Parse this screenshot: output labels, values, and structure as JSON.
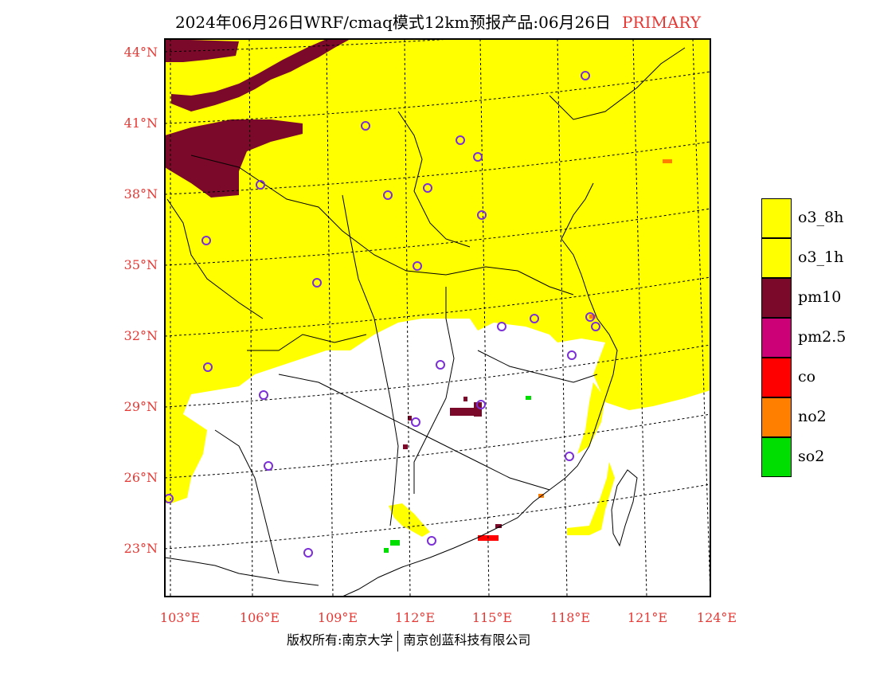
{
  "title": {
    "text": "2024年06月26日WRF/cmaq模式12km预报产品:06月26日",
    "tag": "PRIMARY"
  },
  "axes": {
    "lat_labels": [
      "44°N",
      "41°N",
      "38°N",
      "35°N",
      "32°N",
      "29°N",
      "26°N",
      "23°N"
    ],
    "lon_labels": [
      "103°E",
      "106°E",
      "109°E",
      "112°E",
      "115°E",
      "118°E",
      "121°E",
      "124°E"
    ],
    "label_color": "#e53935"
  },
  "legend": {
    "items": [
      {
        "label": "o3_8h",
        "color": "#ffff00"
      },
      {
        "label": "o3_1h",
        "color": "#ffff00"
      },
      {
        "label": "pm10",
        "color": "#7b0a2a"
      },
      {
        "label": "pm2.5",
        "color": "#cc0077"
      },
      {
        "label": "co",
        "color": "#ff0000"
      },
      {
        "label": "no2",
        "color": "#ff7f00"
      },
      {
        "label": "so2",
        "color": "#00dd00"
      }
    ]
  },
  "footer": {
    "left": "版权所有:南京大学",
    "right": "南京创蓝科技有限公司"
  },
  "colors": {
    "o3": "#ffff00",
    "pm10": "#7b0a2a",
    "station_marker": "#7b2fd6"
  }
}
